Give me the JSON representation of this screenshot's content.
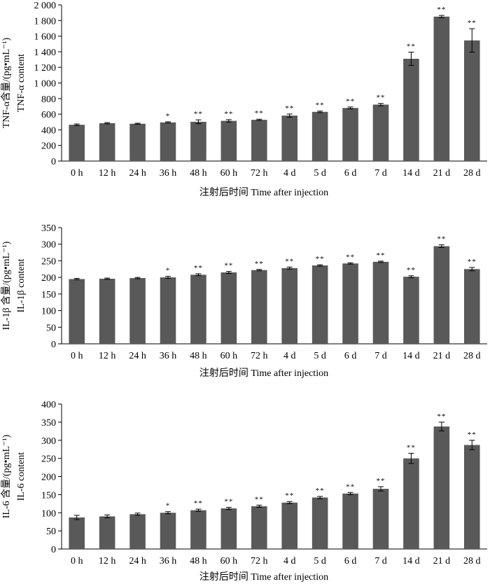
{
  "chart_data": [
    {
      "type": "bar",
      "ylabel_zh": "TNF-α含量/(pg•mL⁻¹)",
      "ylabel": "TNF-α content",
      "xlabel": "注射后时间 Time after injection",
      "categories": [
        "0 h",
        "12 h",
        "24 h",
        "36 h",
        "48 h",
        "60 h",
        "72 h",
        "4 d",
        "5 d",
        "6 d",
        "7 d",
        "14 d",
        "21 d",
        "28 d"
      ],
      "values": [
        465,
        485,
        478,
        495,
        503,
        515,
        528,
        582,
        630,
        680,
        723,
        1310,
        1850,
        1545
      ],
      "errors": [
        10,
        8,
        7,
        8,
        25,
        15,
        8,
        20,
        10,
        12,
        15,
        85,
        15,
        150
      ],
      "significance": [
        "",
        "",
        "",
        "*",
        "**",
        "**",
        "**",
        "**",
        "**",
        "**",
        "**",
        "**",
        "**",
        "**"
      ],
      "ylim": [
        0,
        2000
      ],
      "yticks": [
        0,
        200,
        400,
        600,
        800,
        1000,
        1200,
        1400,
        1600,
        1800,
        2000
      ],
      "ytick_labels": [
        "0",
        "200",
        "400",
        "600",
        "800",
        "1 000",
        "1 200",
        "1 400",
        "1 600",
        "1 800",
        "2 000"
      ]
    },
    {
      "type": "bar",
      "ylabel_zh": "IL-1β 含量/(pg•mL⁻¹)",
      "ylabel": "IL-1β content",
      "xlabel": "注射后时间 Time after injection",
      "categories": [
        "0 h",
        "12 h",
        "24 h",
        "36 h",
        "48 h",
        "60 h",
        "72 h",
        "4 d",
        "5 d",
        "6 d",
        "7 d",
        "14 d",
        "21 d",
        "28 d"
      ],
      "values": [
        195,
        196,
        198,
        200,
        208,
        215,
        222,
        228,
        236,
        242,
        247,
        202,
        294,
        225
      ],
      "errors": [
        2,
        2,
        2,
        3,
        3,
        3,
        2,
        3,
        2,
        2,
        2,
        3,
        4,
        5
      ],
      "significance": [
        "",
        "",
        "",
        "*",
        "**",
        "**",
        "**",
        "**",
        "**",
        "**",
        "**",
        "**",
        "**",
        "**"
      ],
      "ylim": [
        0,
        350
      ],
      "yticks": [
        0,
        50,
        100,
        150,
        200,
        250,
        300,
        350
      ],
      "ytick_labels": [
        "0",
        "50",
        "100",
        "150",
        "200",
        "250",
        "300",
        "350"
      ]
    },
    {
      "type": "bar",
      "ylabel_zh": "IL-6 含量/(pg•mL⁻¹)",
      "ylabel": "IL-6 content",
      "xlabel": "注射后时间 Time after injection",
      "categories": [
        "0 h",
        "12 h",
        "24 h",
        "36 h",
        "48 h",
        "60 h",
        "72 h",
        "4 d",
        "5 d",
        "6 d",
        "7 d",
        "14 d",
        "21 d",
        "28 d"
      ],
      "values": [
        87,
        90,
        96,
        100,
        107,
        112,
        118,
        128,
        142,
        153,
        166,
        250,
        338,
        287
      ],
      "errors": [
        6,
        4,
        3,
        3,
        3,
        3,
        3,
        3,
        3,
        3,
        6,
        14,
        12,
        13
      ],
      "significance": [
        "",
        "",
        "",
        "*",
        "**",
        "**",
        "**",
        "**",
        "**",
        "**",
        "**",
        "**",
        "**",
        "**"
      ],
      "ylim": [
        0,
        400
      ],
      "yticks": [
        0,
        50,
        100,
        150,
        200,
        250,
        300,
        350,
        400
      ],
      "ytick_labels": [
        "0",
        "50",
        "100",
        "150",
        "200",
        "250",
        "300",
        "350",
        "400"
      ]
    }
  ]
}
